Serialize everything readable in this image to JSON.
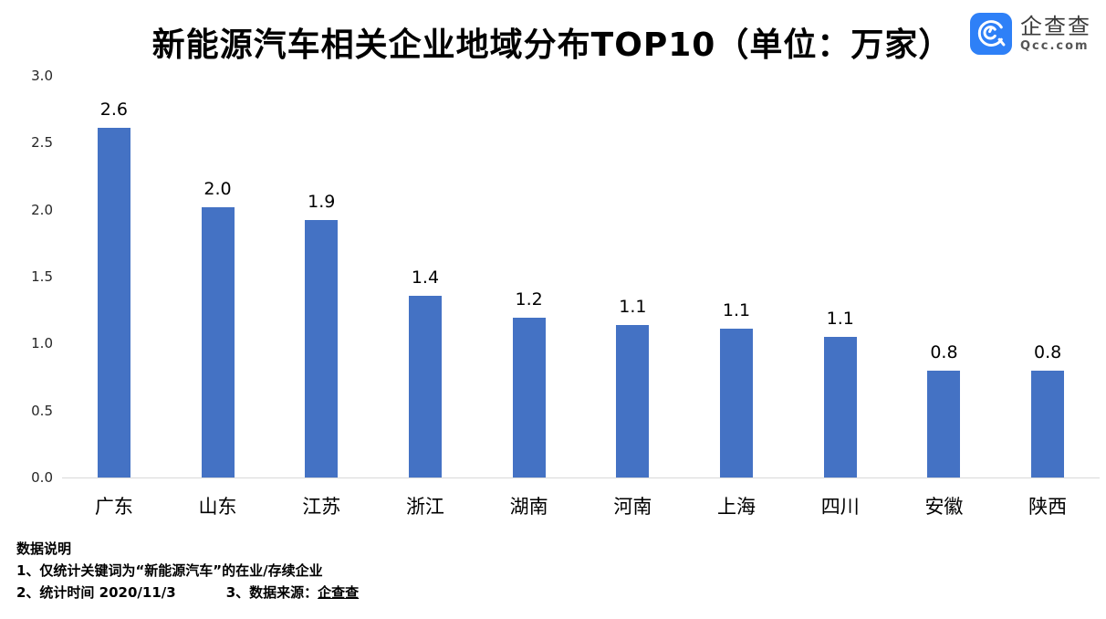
{
  "header": {
    "title": "新能源汽车相关企业地域分布TOP10（单位：万家）"
  },
  "logo": {
    "name": "企查查",
    "domain": "Qcc.com",
    "brand_color": "#2e80f7"
  },
  "chart_data": {
    "type": "bar",
    "title": "新能源汽车相关企业地域分布TOP10（单位：万家）",
    "unit": "万家",
    "categories": [
      "广东",
      "山东",
      "江苏",
      "浙江",
      "湖南",
      "河南",
      "上海",
      "四川",
      "安徽",
      "陕西"
    ],
    "values": [
      2.61,
      2.02,
      1.92,
      1.36,
      1.19,
      1.14,
      1.11,
      1.05,
      0.8,
      0.8
    ],
    "value_labels": [
      "2.6",
      "2.0",
      "1.9",
      "1.4",
      "1.2",
      "1.1",
      "1.1",
      "1.1",
      "0.8",
      "0.8"
    ],
    "xlabel": "",
    "ylabel": "",
    "ylim": [
      0,
      3.0
    ],
    "yticks": [
      "0.0",
      "0.5",
      "1.0",
      "1.5",
      "2.0",
      "2.5",
      "3.0"
    ],
    "grid": false,
    "legend": null,
    "bar_color": "#4472c4",
    "axis_line_color": "#d9d9d9"
  },
  "notes": {
    "heading": "数据说明",
    "line1": "1、仅统计关键词为“新能源汽车”的在业/存续企业",
    "line2a": "2、统计时间 2020/11/3",
    "line2b": "3、数据来源：",
    "source_link": "企查查"
  }
}
